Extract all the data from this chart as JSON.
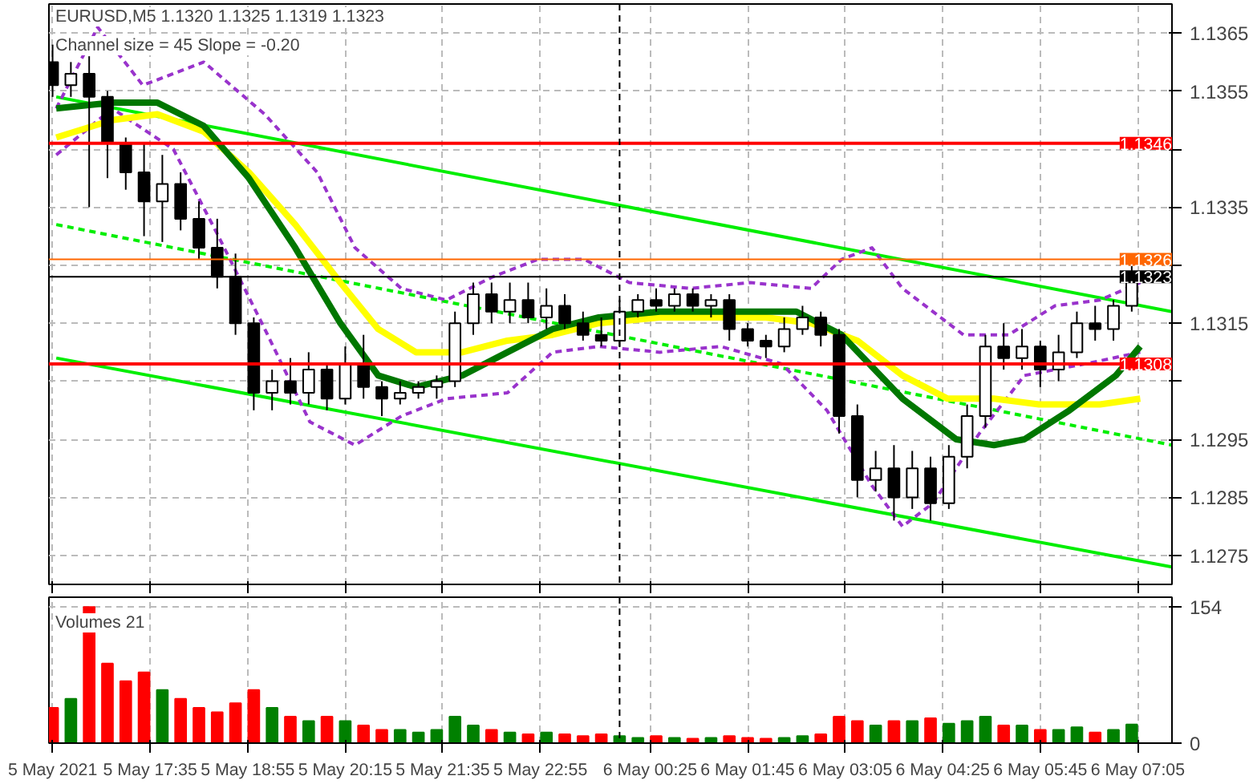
{
  "chart_data": [
    {
      "type": "candlestick",
      "title": "EURUSD,M5 1.1320 1.1325 1.1319 1.1323",
      "subtitle": "Channel size = 45 Slope = -0.20",
      "color": "#000000",
      "x": [
        "2021-05-05T16:15",
        "2021-05-05T16:30",
        "2021-05-05T16:45",
        "2021-05-05T17:00",
        "2021-05-05T17:15",
        "2021-05-05T17:30",
        "2021-05-05T17:45",
        "2021-05-05T18:00",
        "2021-05-05T18:15",
        "2021-05-05T18:30",
        "2021-05-05T18:45",
        "2021-05-05T19:00",
        "2021-05-05T19:15",
        "2021-05-05T19:30",
        "2021-05-05T19:45",
        "2021-05-05T20:00",
        "2021-05-05T20:15",
        "2021-05-05T20:30",
        "2021-05-05T20:45",
        "2021-05-05T21:00",
        "2021-05-05T21:15",
        "2021-05-05T21:30",
        "2021-05-05T21:45",
        "2021-05-05T22:00",
        "2021-05-05T22:15",
        "2021-05-05T22:30",
        "2021-05-05T22:45",
        "2021-05-05T23:00",
        "2021-05-05T23:15",
        "2021-05-05T23:30",
        "2021-05-05T23:45",
        "2021-05-06T00:00",
        "2021-05-06T00:15",
        "2021-05-06T00:30",
        "2021-05-06T00:45",
        "2021-05-06T01:00",
        "2021-05-06T01:15",
        "2021-05-06T01:30",
        "2021-05-06T01:45",
        "2021-05-06T02:00",
        "2021-05-06T02:15",
        "2021-05-06T02:30",
        "2021-05-06T02:45",
        "2021-05-06T03:00",
        "2021-05-06T03:15",
        "2021-05-06T03:30",
        "2021-05-06T03:45",
        "2021-05-06T04:00",
        "2021-05-06T04:15",
        "2021-05-06T04:30",
        "2021-05-06T04:45",
        "2021-05-06T05:00",
        "2021-05-06T05:15",
        "2021-05-06T05:30",
        "2021-05-06T05:45",
        "2021-05-06T06:00",
        "2021-05-06T06:15",
        "2021-05-06T06:30",
        "2021-05-06T06:45",
        "2021-05-06T07:00"
      ],
      "ohlc": [
        [
          1.136,
          1.1363,
          1.1354,
          1.1356
        ],
        [
          1.1356,
          1.136,
          1.1354,
          1.1358
        ],
        [
          1.1358,
          1.1361,
          1.1335,
          1.1354
        ],
        [
          1.1354,
          1.1355,
          1.134,
          1.1346
        ],
        [
          1.1346,
          1.1347,
          1.1338,
          1.1341
        ],
        [
          1.1341,
          1.1346,
          1.133,
          1.1336
        ],
        [
          1.1336,
          1.1344,
          1.1329,
          1.1339
        ],
        [
          1.1339,
          1.1341,
          1.1331,
          1.1333
        ],
        [
          1.1333,
          1.1336,
          1.1326,
          1.1328
        ],
        [
          1.1328,
          1.1333,
          1.1321,
          1.1323
        ],
        [
          1.1323,
          1.1327,
          1.1313,
          1.1315
        ],
        [
          1.1315,
          1.1316,
          1.13,
          1.1303
        ],
        [
          1.1303,
          1.1307,
          1.13,
          1.1305
        ],
        [
          1.1305,
          1.1309,
          1.1301,
          1.1303
        ],
        [
          1.1303,
          1.131,
          1.1301,
          1.1307
        ],
        [
          1.1307,
          1.1308,
          1.13,
          1.1302
        ],
        [
          1.1302,
          1.1311,
          1.1301,
          1.1308
        ],
        [
          1.1308,
          1.1313,
          1.1302,
          1.1304
        ],
        [
          1.1304,
          1.1305,
          1.1299,
          1.1302
        ],
        [
          1.1302,
          1.1305,
          1.1301,
          1.1303
        ],
        [
          1.1303,
          1.1305,
          1.1302,
          1.1304
        ],
        [
          1.1304,
          1.1306,
          1.1302,
          1.1305
        ],
        [
          1.1305,
          1.1317,
          1.1304,
          1.1315
        ],
        [
          1.1315,
          1.1322,
          1.1313,
          1.132
        ],
        [
          1.132,
          1.1322,
          1.1315,
          1.1317
        ],
        [
          1.1317,
          1.1322,
          1.1315,
          1.1319
        ],
        [
          1.1319,
          1.1322,
          1.1315,
          1.1316
        ],
        [
          1.1316,
          1.1321,
          1.1314,
          1.1318
        ],
        [
          1.1318,
          1.132,
          1.1314,
          1.1315
        ],
        [
          1.1315,
          1.1317,
          1.1312,
          1.1313
        ],
        [
          1.1313,
          1.1316,
          1.1311,
          1.1312
        ],
        [
          1.1312,
          1.1319,
          1.1311,
          1.1317
        ],
        [
          1.1317,
          1.132,
          1.1316,
          1.1319
        ],
        [
          1.1319,
          1.1321,
          1.1317,
          1.1318
        ],
        [
          1.1318,
          1.1321,
          1.1317,
          1.132
        ],
        [
          1.132,
          1.1321,
          1.1317,
          1.1318
        ],
        [
          1.1318,
          1.132,
          1.1316,
          1.1319
        ],
        [
          1.1319,
          1.132,
          1.1312,
          1.1314
        ],
        [
          1.1314,
          1.1315,
          1.1311,
          1.1312
        ],
        [
          1.1312,
          1.1313,
          1.1309,
          1.1311
        ],
        [
          1.1311,
          1.1316,
          1.131,
          1.1314
        ],
        [
          1.1314,
          1.1318,
          1.1313,
          1.1316
        ],
        [
          1.1316,
          1.1317,
          1.1311,
          1.1313
        ],
        [
          1.1313,
          1.1314,
          1.1296,
          1.1299
        ],
        [
          1.1299,
          1.1301,
          1.1285,
          1.1288
        ],
        [
          1.1288,
          1.1293,
          1.1286,
          1.129
        ],
        [
          1.129,
          1.1294,
          1.1281,
          1.1285
        ],
        [
          1.1285,
          1.1293,
          1.1283,
          1.129
        ],
        [
          1.129,
          1.1292,
          1.1281,
          1.1284
        ],
        [
          1.1284,
          1.1294,
          1.1283,
          1.1292
        ],
        [
          1.1292,
          1.1301,
          1.129,
          1.1299
        ],
        [
          1.1299,
          1.1313,
          1.1297,
          1.1311
        ],
        [
          1.1311,
          1.1315,
          1.1307,
          1.1309
        ],
        [
          1.1309,
          1.1314,
          1.1307,
          1.1311
        ],
        [
          1.1311,
          1.1312,
          1.1304,
          1.1307
        ],
        [
          1.1307,
          1.1313,
          1.1305,
          1.131
        ],
        [
          1.131,
          1.1317,
          1.1309,
          1.1315
        ],
        [
          1.1315,
          1.1318,
          1.1312,
          1.1314
        ],
        [
          1.1314,
          1.1319,
          1.1312,
          1.1318
        ],
        [
          1.1318,
          1.1325,
          1.1317,
          1.1323
        ]
      ],
      "series": [
        {
          "type": "line",
          "color": "#00ee00",
          "x": [
            "2021-05-05T16:18",
            "2021-05-06T07:33"
          ],
          "values": [
            1.1354,
            1.1317
          ]
        },
        {
          "type": "line",
          "color": "#00ee00",
          "x": [
            "2021-05-05T16:18",
            "2021-05-06T07:33"
          ],
          "values": [
            1.1309,
            1.1273
          ]
        },
        {
          "type": "line",
          "color": "#00ee00",
          "line_style": "dashed",
          "x": [
            "2021-05-05T16:18",
            "2021-05-06T07:33"
          ],
          "values": [
            1.1332,
            1.1294
          ]
        },
        {
          "type": "line",
          "color": "#9933cc",
          "line_style": "dashed",
          "x": [
            "2021-05-05T16:18",
            "2021-05-05T16:52",
            "2021-05-05T17:29",
            "2021-05-05T18:19",
            "2021-05-05T19:09",
            "2021-05-05T19:52",
            "2021-05-05T20:23",
            "2021-05-05T21:01",
            "2021-05-05T21:38",
            "2021-05-05T22:16",
            "2021-05-05T22:53",
            "2021-05-05T23:31",
            "2021-05-06T00:08",
            "2021-05-06T00:58",
            "2021-05-06T01:47",
            "2021-05-06T02:37",
            "2021-05-06T03:02",
            "2021-05-06T03:27",
            "2021-05-06T03:52",
            "2021-05-06T04:42",
            "2021-05-06T05:19",
            "2021-05-06T05:57",
            "2021-05-06T06:34",
            "2021-05-06T07:07"
          ],
          "values": [
            1.1352,
            1.1366,
            1.1356,
            1.136,
            1.1351,
            1.1341,
            1.1328,
            1.1321,
            1.1319,
            1.1323,
            1.1326,
            1.1326,
            1.1322,
            1.1321,
            1.1322,
            1.1321,
            1.1326,
            1.1328,
            1.1321,
            1.1313,
            1.1313,
            1.1318,
            1.1319,
            1.1322
          ]
        },
        {
          "type": "line",
          "color": "#9933cc",
          "line_style": "dashed",
          "x": [
            "2021-05-05T16:18",
            "2021-05-05T17:04",
            "2021-05-05T17:54",
            "2021-05-05T18:31",
            "2021-05-05T19:09",
            "2021-05-05T19:46",
            "2021-05-05T20:23",
            "2021-05-05T21:01",
            "2021-05-05T21:38",
            "2021-05-05T22:28",
            "2021-05-05T23:05",
            "2021-05-05T23:43",
            "2021-05-06T00:33",
            "2021-05-06T01:23",
            "2021-05-06T02:13",
            "2021-05-06T02:50",
            "2021-05-06T03:27",
            "2021-05-06T03:52",
            "2021-05-06T04:17",
            "2021-05-06T04:55",
            "2021-05-06T05:32",
            "2021-05-06T06:22",
            "2021-05-06T07:07"
          ],
          "values": [
            1.1344,
            1.1352,
            1.1345,
            1.133,
            1.1314,
            1.1298,
            1.1294,
            1.1299,
            1.1302,
            1.1303,
            1.131,
            1.1311,
            1.131,
            1.1311,
            1.1308,
            1.13,
            1.1287,
            1.128,
            1.1284,
            1.1296,
            1.1306,
            1.1308,
            1.131
          ]
        },
        {
          "type": "line",
          "color": "#ffff00",
          "x": [
            "2021-05-05T16:18",
            "2021-05-05T17:04",
            "2021-05-05T17:41",
            "2021-05-05T18:19",
            "2021-05-05T18:56",
            "2021-05-05T19:34",
            "2021-05-05T20:11",
            "2021-05-05T20:42",
            "2021-05-05T21:13",
            "2021-05-05T21:51",
            "2021-05-05T22:28",
            "2021-05-05T23:05",
            "2021-05-05T23:43",
            "2021-05-06T00:33",
            "2021-05-06T01:23",
            "2021-05-06T02:00",
            "2021-05-06T02:37",
            "2021-05-06T03:15",
            "2021-05-06T03:52",
            "2021-05-06T04:29",
            "2021-05-06T05:07",
            "2021-05-06T05:44",
            "2021-05-06T06:34",
            "2021-05-06T07:07"
          ],
          "values": [
            1.1347,
            1.135,
            1.1351,
            1.1348,
            1.1341,
            1.1332,
            1.1322,
            1.1314,
            1.131,
            1.131,
            1.1312,
            1.1313,
            1.1315,
            1.1316,
            1.1316,
            1.1316,
            1.1315,
            1.1312,
            1.1306,
            1.1302,
            1.1302,
            1.1301,
            1.1301,
            1.1302
          ]
        },
        {
          "type": "line",
          "color": "#007700",
          "x": [
            "2021-05-05T16:18",
            "2021-05-05T17:04",
            "2021-05-05T17:41",
            "2021-05-05T18:19",
            "2021-05-05T18:56",
            "2021-05-05T19:34",
            "2021-05-05T20:11",
            "2021-05-05T20:42",
            "2021-05-05T21:13",
            "2021-05-05T21:51",
            "2021-05-05T22:28",
            "2021-05-05T23:05",
            "2021-05-05T23:43",
            "2021-05-06T00:33",
            "2021-05-06T01:35",
            "2021-05-06T02:25",
            "2021-05-06T03:02",
            "2021-05-06T03:52",
            "2021-05-06T04:36",
            "2021-05-06T05:07",
            "2021-05-06T05:32",
            "2021-05-06T06:09",
            "2021-05-06T06:47",
            "2021-05-06T07:07"
          ],
          "values": [
            1.1352,
            1.1353,
            1.1353,
            1.1349,
            1.134,
            1.1328,
            1.1315,
            1.1306,
            1.1304,
            1.1306,
            1.131,
            1.1314,
            1.1316,
            1.1317,
            1.1317,
            1.1317,
            1.1313,
            1.1302,
            1.1295,
            1.1294,
            1.1295,
            1.13,
            1.1306,
            1.1311
          ]
        }
      ],
      "xlim": [
        "2021-05-05T16:12",
        "2021-05-06T07:33"
      ],
      "ylim": [
        1.127,
        1.137
      ],
      "xticks": [
        {
          "value": "2021-05-05T16:15",
          "label": null
        },
        {
          "value": "2021-05-05T17:35",
          "label": null
        },
        {
          "value": "2021-05-05T18:55",
          "label": null
        },
        {
          "value": "2021-05-05T20:15",
          "label": null
        },
        {
          "value": "2021-05-05T21:35",
          "label": null
        },
        {
          "value": "2021-05-05T22:55",
          "label": null
        },
        {
          "value": "2021-05-06T00:25",
          "label": null
        },
        {
          "value": "2021-05-06T01:45",
          "label": null
        },
        {
          "value": "2021-05-06T03:05",
          "label": null
        },
        {
          "value": "2021-05-06T04:25",
          "label": null
        },
        {
          "value": "2021-05-06T05:45",
          "label": null
        },
        {
          "value": "2021-05-06T07:05",
          "label": null
        }
      ],
      "yticks": [
        1.1365,
        1.1355,
        {
          "value": 1.1345,
          "label": null
        },
        1.1335,
        {
          "value": 1.1325,
          "label": null
        },
        1.1315,
        {
          "value": 1.1305,
          "label": null
        },
        1.1295,
        1.1285,
        1.1275
      ],
      "ref_lines": [
        {
          "axis": "y",
          "value": 1.1346,
          "label": "1.1346",
          "color": "#ff0000"
        },
        {
          "axis": "y",
          "value": 1.1308,
          "label": "1.1308",
          "color": "#ff0000"
        },
        {
          "axis": "y",
          "value": 1.1326,
          "label": "1.1326",
          "color": "#ff6600"
        },
        {
          "axis": "y",
          "value": 1.1323,
          "label": "1.1323",
          "color": "#000000"
        },
        {
          "axis": "x",
          "value": "2021-05-06T00:00",
          "color": "#000000",
          "line_style": "dashed"
        }
      ],
      "grid": true,
      "tick_labels": "y"
    },
    {
      "type": "bar",
      "title": "Volumes 21",
      "x": [
        "2021-05-05T16:15",
        "2021-05-05T16:30",
        "2021-05-05T16:45",
        "2021-05-05T17:00",
        "2021-05-05T17:15",
        "2021-05-05T17:30",
        "2021-05-05T17:45",
        "2021-05-05T18:00",
        "2021-05-05T18:15",
        "2021-05-05T18:30",
        "2021-05-05T18:45",
        "2021-05-05T19:00",
        "2021-05-05T19:15",
        "2021-05-05T19:30",
        "2021-05-05T19:45",
        "2021-05-05T20:00",
        "2021-05-05T20:15",
        "2021-05-05T20:30",
        "2021-05-05T20:45",
        "2021-05-05T21:00",
        "2021-05-05T21:15",
        "2021-05-05T21:30",
        "2021-05-05T21:45",
        "2021-05-05T22:00",
        "2021-05-05T22:15",
        "2021-05-05T22:30",
        "2021-05-05T22:45",
        "2021-05-05T23:00",
        "2021-05-05T23:15",
        "2021-05-05T23:30",
        "2021-05-05T23:45",
        "2021-05-06T00:00",
        "2021-05-06T00:15",
        "2021-05-06T00:30",
        "2021-05-06T00:45",
        "2021-05-06T01:00",
        "2021-05-06T01:15",
        "2021-05-06T01:30",
        "2021-05-06T01:45",
        "2021-05-06T02:00",
        "2021-05-06T02:15",
        "2021-05-06T02:30",
        "2021-05-06T02:45",
        "2021-05-06T03:00",
        "2021-05-06T03:15",
        "2021-05-06T03:30",
        "2021-05-06T03:45",
        "2021-05-06T04:00",
        "2021-05-06T04:15",
        "2021-05-06T04:30",
        "2021-05-06T04:45",
        "2021-05-06T05:00",
        "2021-05-06T05:15",
        "2021-05-06T05:30",
        "2021-05-06T05:45",
        "2021-05-06T06:00",
        "2021-05-06T06:15",
        "2021-05-06T06:30",
        "2021-05-06T06:45",
        "2021-05-06T07:00"
      ],
      "values": [
        40,
        50,
        154,
        90,
        70,
        80,
        60,
        50,
        40,
        35,
        45,
        60,
        40,
        30,
        25,
        30,
        25,
        20,
        15,
        15,
        12,
        15,
        30,
        20,
        15,
        12,
        10,
        12,
        10,
        8,
        10,
        8,
        6,
        8,
        6,
        5,
        6,
        8,
        6,
        5,
        6,
        8,
        10,
        30,
        25,
        20,
        25,
        25,
        28,
        22,
        25,
        30,
        20,
        20,
        15,
        15,
        18,
        12,
        15,
        21
      ],
      "colors": [
        "#ff0000",
        "#008000",
        "#ff0000",
        "#ff0000",
        "#ff0000",
        "#ff0000",
        "#008000",
        "#ff0000",
        "#ff0000",
        "#ff0000",
        "#ff0000",
        "#ff0000",
        "#008000",
        "#ff0000",
        "#008000",
        "#ff0000",
        "#008000",
        "#ff0000",
        "#ff0000",
        "#008000",
        "#008000",
        "#008000",
        "#008000",
        "#008000",
        "#ff0000",
        "#008000",
        "#ff0000",
        "#008000",
        "#ff0000",
        "#ff0000",
        "#ff0000",
        "#008000",
        "#008000",
        "#ff0000",
        "#008000",
        "#ff0000",
        "#008000",
        "#ff0000",
        "#ff0000",
        "#ff0000",
        "#008000",
        "#008000",
        "#ff0000",
        "#ff0000",
        "#ff0000",
        "#008000",
        "#ff0000",
        "#008000",
        "#ff0000",
        "#008000",
        "#008000",
        "#008000",
        "#ff0000",
        "#008000",
        "#ff0000",
        "#008000",
        "#008000",
        "#ff0000",
        "#008000",
        "#008000"
      ],
      "xlim": [
        "2021-05-05T16:12",
        "2021-05-06T07:33"
      ],
      "ylim": [
        0,
        165
      ],
      "yticks": [
        0,
        154
      ],
      "xticks": [
        {
          "value": "2021-05-05T16:15",
          "label": "5 May 2021"
        },
        {
          "value": "2021-05-05T17:35",
          "label": "5 May 17:35"
        },
        {
          "value": "2021-05-05T18:55",
          "label": "5 May 18:55"
        },
        {
          "value": "2021-05-05T20:15",
          "label": "5 May 20:15"
        },
        {
          "value": "2021-05-05T21:35",
          "label": "5 May 21:35"
        },
        {
          "value": "2021-05-05T22:55",
          "label": "5 May 22:55"
        },
        {
          "value": "2021-05-06T00:25",
          "label": "6 May 00:25"
        },
        {
          "value": "2021-05-06T01:45",
          "label": "6 May 01:45"
        },
        {
          "value": "2021-05-06T03:05",
          "label": "6 May 03:05"
        },
        {
          "value": "2021-05-06T04:25",
          "label": "6 May 04:25"
        },
        {
          "value": "2021-05-06T05:45",
          "label": "6 May 05:45"
        },
        {
          "value": "2021-05-06T07:05",
          "label": "6 May 07:05"
        }
      ],
      "ref_lines": [
        {
          "axis": "x",
          "value": "2021-05-06T00:00",
          "color": "#000000",
          "line_style": "dashed"
        }
      ],
      "grid": true
    }
  ]
}
